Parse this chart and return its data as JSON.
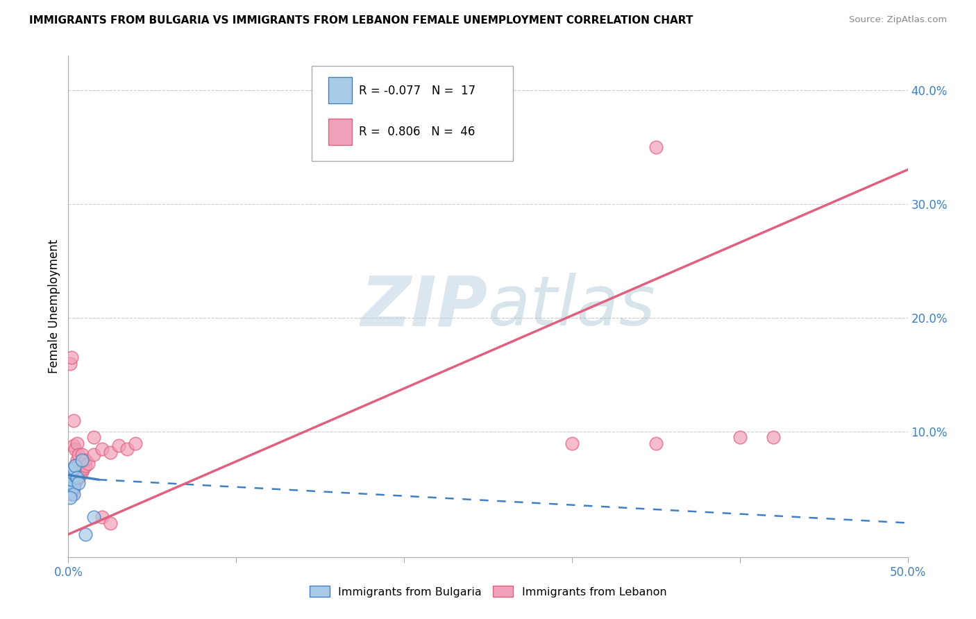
{
  "title": "IMMIGRANTS FROM BULGARIA VS IMMIGRANTS FROM LEBANON FEMALE UNEMPLOYMENT CORRELATION CHART",
  "source": "Source: ZipAtlas.com",
  "ylabel": "Female Unemployment",
  "xlim": [
    0.0,
    0.5
  ],
  "ylim": [
    -0.01,
    0.43
  ],
  "xticks": [
    0.0,
    0.1,
    0.2,
    0.3,
    0.4,
    0.5
  ],
  "yticks": [
    0.1,
    0.2,
    0.3,
    0.4
  ],
  "ytick_labels": [
    "10.0%",
    "20.0%",
    "30.0%",
    "40.0%"
  ],
  "xtick_labels": [
    "0.0%",
    "",
    "",
    "",
    "",
    "50.0%"
  ],
  "legend_blue_R": "-0.077",
  "legend_blue_N": "17",
  "legend_pink_R": "0.806",
  "legend_pink_N": "46",
  "legend1_label": "Immigrants from Bulgaria",
  "legend2_label": "Immigrants from Lebanon",
  "watermark": "ZIPatlas",
  "blue_color": "#A8CBE8",
  "pink_color": "#F0A0B8",
  "blue_line_color": "#4080C0",
  "pink_line_color": "#E06080",
  "bg_color": "#FFFFFF",
  "grid_color": "#CCCCCC",
  "bulgaria_points": [
    [
      0.001,
      0.055
    ],
    [
      0.002,
      0.05
    ],
    [
      0.002,
      0.048
    ],
    [
      0.001,
      0.06
    ],
    [
      0.003,
      0.052
    ],
    [
      0.002,
      0.058
    ],
    [
      0.003,
      0.045
    ],
    [
      0.004,
      0.062
    ],
    [
      0.001,
      0.042
    ],
    [
      0.002,
      0.065
    ],
    [
      0.003,
      0.068
    ],
    [
      0.004,
      0.07
    ],
    [
      0.005,
      0.06
    ],
    [
      0.006,
      0.055
    ],
    [
      0.008,
      0.075
    ],
    [
      0.015,
      0.025
    ],
    [
      0.01,
      0.01
    ]
  ],
  "lebanon_points": [
    [
      0.001,
      0.055
    ],
    [
      0.001,
      0.06
    ],
    [
      0.001,
      0.16
    ],
    [
      0.002,
      0.055
    ],
    [
      0.002,
      0.058
    ],
    [
      0.002,
      0.052
    ],
    [
      0.002,
      0.045
    ],
    [
      0.002,
      0.165
    ],
    [
      0.003,
      0.05
    ],
    [
      0.003,
      0.058
    ],
    [
      0.003,
      0.062
    ],
    [
      0.003,
      0.088
    ],
    [
      0.003,
      0.11
    ],
    [
      0.004,
      0.055
    ],
    [
      0.004,
      0.06
    ],
    [
      0.004,
      0.07
    ],
    [
      0.004,
      0.085
    ],
    [
      0.005,
      0.058
    ],
    [
      0.005,
      0.062
    ],
    [
      0.005,
      0.075
    ],
    [
      0.005,
      0.09
    ],
    [
      0.006,
      0.06
    ],
    [
      0.006,
      0.065
    ],
    [
      0.006,
      0.08
    ],
    [
      0.007,
      0.062
    ],
    [
      0.007,
      0.07
    ],
    [
      0.008,
      0.065
    ],
    [
      0.008,
      0.08
    ],
    [
      0.009,
      0.068
    ],
    [
      0.01,
      0.07
    ],
    [
      0.01,
      0.075
    ],
    [
      0.012,
      0.072
    ],
    [
      0.015,
      0.08
    ],
    [
      0.015,
      0.095
    ],
    [
      0.02,
      0.085
    ],
    [
      0.025,
      0.082
    ],
    [
      0.03,
      0.088
    ],
    [
      0.035,
      0.085
    ],
    [
      0.04,
      0.09
    ],
    [
      0.02,
      0.025
    ],
    [
      0.025,
      0.02
    ],
    [
      0.35,
      0.35
    ],
    [
      0.3,
      0.09
    ],
    [
      0.4,
      0.095
    ],
    [
      0.35,
      0.09
    ],
    [
      0.42,
      0.095
    ]
  ],
  "blue_line_solid": [
    [
      0.0,
      0.062
    ],
    [
      0.018,
      0.058
    ]
  ],
  "blue_line_dashed": [
    [
      0.018,
      0.058
    ],
    [
      0.5,
      0.02
    ]
  ],
  "pink_line": [
    [
      0.0,
      0.01
    ],
    [
      0.5,
      0.33
    ]
  ]
}
